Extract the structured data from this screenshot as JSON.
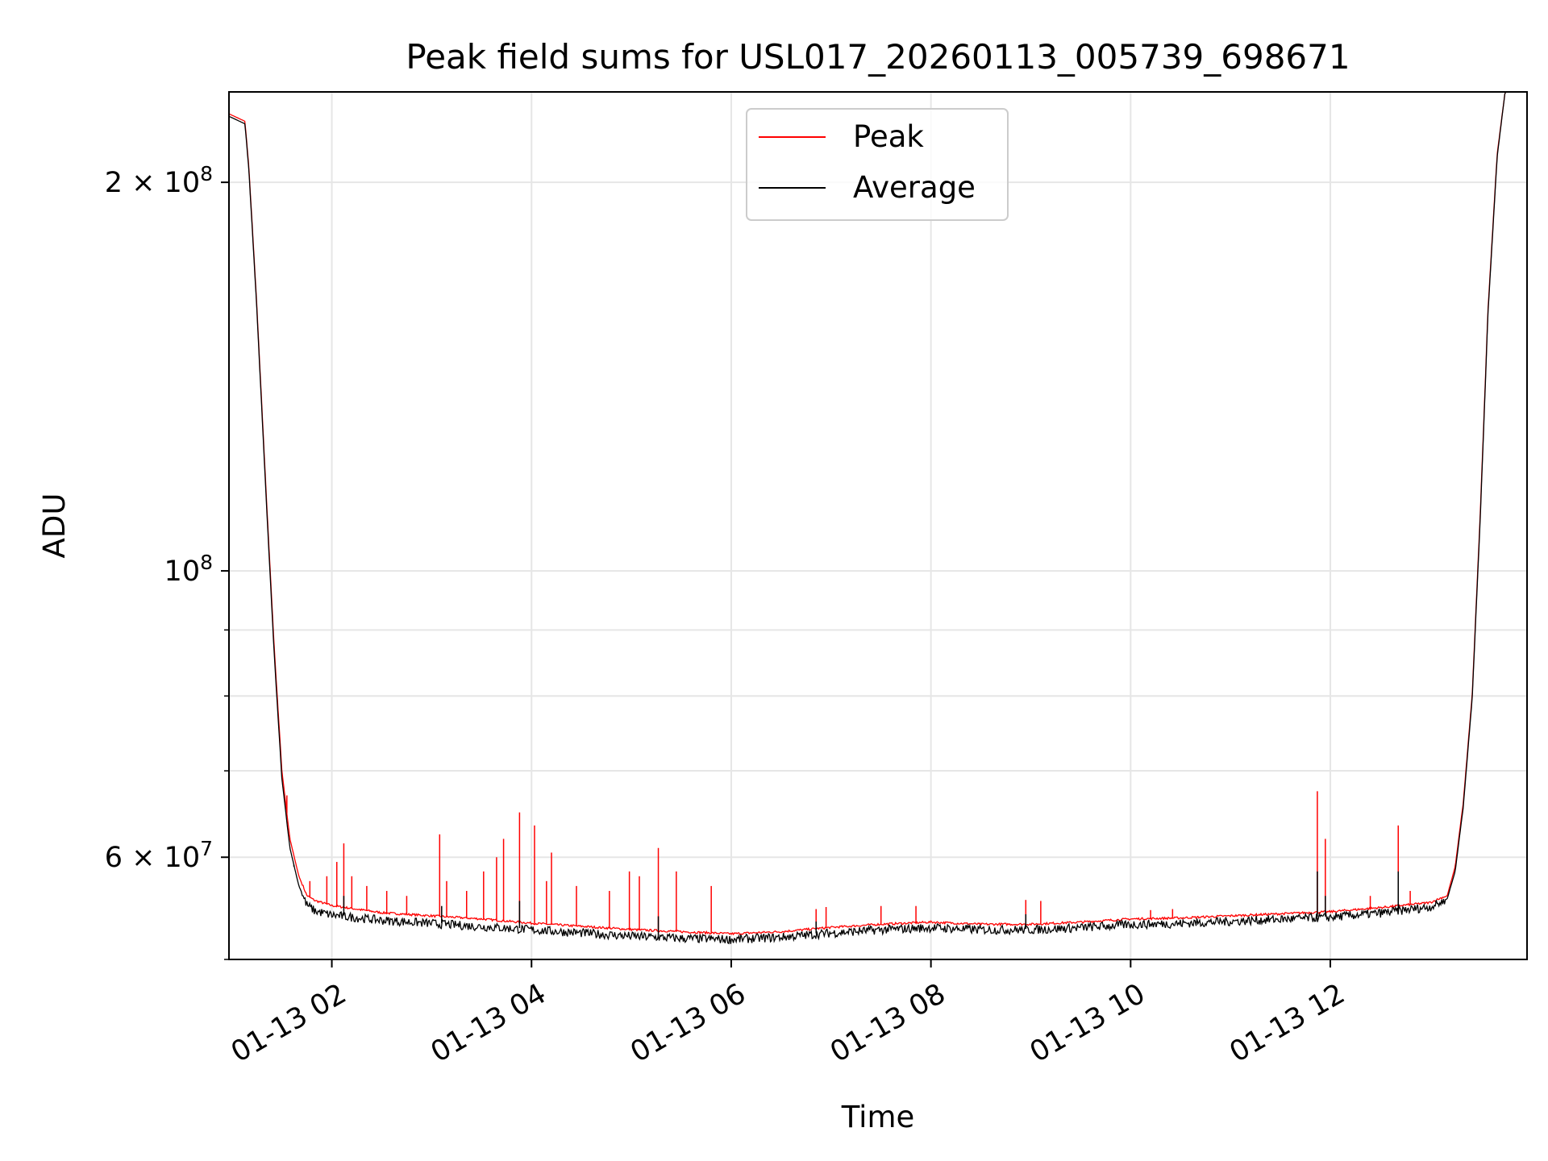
{
  "chart_data": {
    "type": "line",
    "title": "Peak field sums for USL017_20260113_005739_698671",
    "xlabel": "Time",
    "ylabel": "ADU",
    "yscale": "log",
    "ylim": [
      50000000,
      235000000
    ],
    "xlim_hours": [
      0.97,
      13.97
    ],
    "grid": true,
    "legend_position": "top-center",
    "x_ticks": [
      {
        "hour": 2,
        "label": "01-13 02"
      },
      {
        "hour": 4,
        "label": "01-13 04"
      },
      {
        "hour": 6,
        "label": "01-13 06"
      },
      {
        "hour": 8,
        "label": "01-13 08"
      },
      {
        "hour": 10,
        "label": "01-13 10"
      },
      {
        "hour": 12,
        "label": "01-13 12"
      }
    ],
    "y_ticks": [
      {
        "value": 60000000,
        "mantissa": "6",
        "exponent": "7"
      },
      {
        "value": 100000000,
        "mantissa": "",
        "exponent": "8"
      },
      {
        "value": 200000000,
        "mantissa": "2",
        "exponent": "8"
      }
    ],
    "y_minor_ticks": [
      50000000,
      70000000,
      80000000,
      90000000
    ],
    "series": [
      {
        "name": "Peak",
        "color": "#ff0000",
        "points": [
          [
            0.97,
            226000000
          ],
          [
            1.13,
            223000000
          ],
          [
            1.17,
            205000000
          ],
          [
            1.25,
            160000000
          ],
          [
            1.33,
            120000000
          ],
          [
            1.42,
            88000000
          ],
          [
            1.5,
            70000000
          ],
          [
            1.58,
            62000000
          ],
          [
            1.67,
            58000000
          ],
          [
            1.75,
            56000000
          ],
          [
            1.83,
            55500000
          ],
          [
            2.0,
            55000000
          ],
          [
            2.5,
            54300000
          ],
          [
            3.0,
            54000000
          ],
          [
            3.5,
            53700000
          ],
          [
            4.0,
            53300000
          ],
          [
            4.5,
            53000000
          ],
          [
            5.0,
            52700000
          ],
          [
            5.5,
            52500000
          ],
          [
            6.0,
            52300000
          ],
          [
            6.5,
            52500000
          ],
          [
            7.0,
            52900000
          ],
          [
            7.5,
            53200000
          ],
          [
            8.0,
            53400000
          ],
          [
            8.5,
            53200000
          ],
          [
            9.0,
            53200000
          ],
          [
            9.5,
            53400000
          ],
          [
            10.0,
            53700000
          ],
          [
            10.5,
            53800000
          ],
          [
            11.0,
            54000000
          ],
          [
            11.5,
            54200000
          ],
          [
            12.0,
            54400000
          ],
          [
            12.5,
            54800000
          ],
          [
            13.0,
            55300000
          ],
          [
            13.17,
            56000000
          ],
          [
            13.25,
            59000000
          ],
          [
            13.33,
            66000000
          ],
          [
            13.42,
            80000000
          ],
          [
            13.5,
            110000000
          ],
          [
            13.58,
            160000000
          ],
          [
            13.67,
            210000000
          ],
          [
            13.75,
            235000000
          ],
          [
            13.97,
            235000000
          ]
        ],
        "spikes": [
          [
            1.55,
            67000000
          ],
          [
            1.78,
            57500000
          ],
          [
            1.95,
            58000000
          ],
          [
            2.05,
            59500000
          ],
          [
            2.12,
            61500000
          ],
          [
            2.2,
            58000000
          ],
          [
            2.35,
            57000000
          ],
          [
            2.55,
            56500000
          ],
          [
            2.75,
            56000000
          ],
          [
            3.08,
            62500000
          ],
          [
            3.15,
            57500000
          ],
          [
            3.35,
            56500000
          ],
          [
            3.52,
            58500000
          ],
          [
            3.65,
            60000000
          ],
          [
            3.72,
            62000000
          ],
          [
            3.88,
            65000000
          ],
          [
            4.03,
            63500000
          ],
          [
            4.15,
            57500000
          ],
          [
            4.2,
            60500000
          ],
          [
            4.45,
            57000000
          ],
          [
            4.78,
            56500000
          ],
          [
            4.98,
            58500000
          ],
          [
            5.08,
            58000000
          ],
          [
            5.27,
            61000000
          ],
          [
            5.45,
            58500000
          ],
          [
            5.8,
            57000000
          ],
          [
            6.85,
            54700000
          ],
          [
            6.95,
            54900000
          ],
          [
            7.5,
            55000000
          ],
          [
            7.85,
            55000000
          ],
          [
            8.95,
            55600000
          ],
          [
            9.1,
            55500000
          ],
          [
            10.2,
            54600000
          ],
          [
            10.42,
            54700000
          ],
          [
            11.87,
            67500000
          ],
          [
            11.95,
            62000000
          ],
          [
            12.4,
            56000000
          ],
          [
            12.68,
            63500000
          ],
          [
            12.8,
            56500000
          ]
        ]
      },
      {
        "name": "Average",
        "color": "#000000",
        "points": [
          [
            0.97,
            225000000
          ],
          [
            1.13,
            222000000
          ],
          [
            1.17,
            204000000
          ],
          [
            1.25,
            159000000
          ],
          [
            1.33,
            119000000
          ],
          [
            1.42,
            87000000
          ],
          [
            1.5,
            69000000
          ],
          [
            1.58,
            61000000
          ],
          [
            1.67,
            57000000
          ],
          [
            1.75,
            55200000
          ],
          [
            1.83,
            54600000
          ],
          [
            2.0,
            54200000
          ],
          [
            2.5,
            53700000
          ],
          [
            3.0,
            53400000
          ],
          [
            3.5,
            53100000
          ],
          [
            4.0,
            52800000
          ],
          [
            4.5,
            52500000
          ],
          [
            5.0,
            52200000
          ],
          [
            5.5,
            52000000
          ],
          [
            6.0,
            51900000
          ],
          [
            6.5,
            52100000
          ],
          [
            7.0,
            52500000
          ],
          [
            7.5,
            52800000
          ],
          [
            8.0,
            53000000
          ],
          [
            8.5,
            52800000
          ],
          [
            9.0,
            52800000
          ],
          [
            9.5,
            53000000
          ],
          [
            10.0,
            53300000
          ],
          [
            10.5,
            53400000
          ],
          [
            11.0,
            53600000
          ],
          [
            11.5,
            53800000
          ],
          [
            12.0,
            54000000
          ],
          [
            12.5,
            54400000
          ],
          [
            13.0,
            55000000
          ],
          [
            13.17,
            55700000
          ],
          [
            13.25,
            58500000
          ],
          [
            13.33,
            65500000
          ],
          [
            13.42,
            79500000
          ],
          [
            13.5,
            109000000
          ],
          [
            13.58,
            159000000
          ],
          [
            13.67,
            209000000
          ],
          [
            13.75,
            235000000
          ],
          [
            13.97,
            235000000
          ]
        ],
        "spikes": [
          [
            1.62,
            59000000
          ],
          [
            2.12,
            56000000
          ],
          [
            3.1,
            55000000
          ],
          [
            3.88,
            55500000
          ],
          [
            5.27,
            54000000
          ],
          [
            6.85,
            53500000
          ],
          [
            8.95,
            54200000
          ],
          [
            11.87,
            58500000
          ],
          [
            11.95,
            56000000
          ],
          [
            12.68,
            58500000
          ]
        ]
      }
    ]
  }
}
